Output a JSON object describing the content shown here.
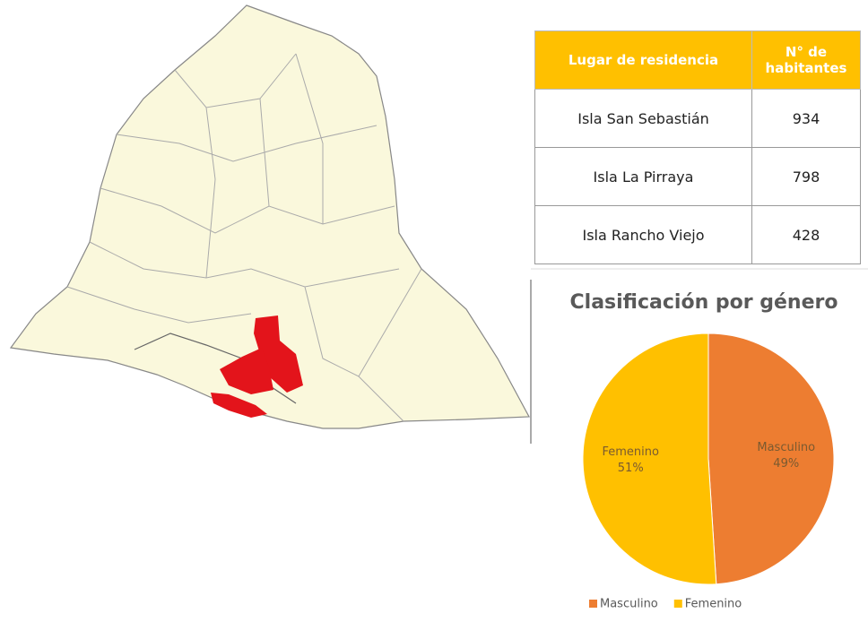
{
  "table": {
    "header": [
      "Lugar de residencia",
      "N° de habitantes"
    ],
    "rows": [
      [
        "Isla San Sebastián",
        "934"
      ],
      [
        "Isla La Pirraya",
        "798"
      ],
      [
        "Isla Rancho Viejo",
        "428"
      ]
    ]
  },
  "chart_data": {
    "type": "pie",
    "title": "Clasificación por género",
    "categories": [
      "Masculino",
      "Femenino"
    ],
    "values": [
      49,
      51
    ],
    "value_labels": [
      "49%",
      "51%"
    ],
    "colors": [
      "#ED7D31",
      "#FFC000"
    ],
    "legend": "bottom"
  }
}
